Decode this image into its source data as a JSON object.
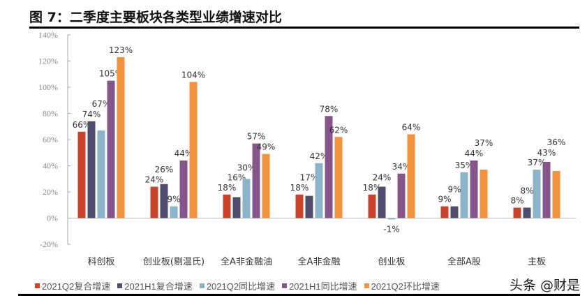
{
  "title": "图 7：二季度主要板块各类型业绩增速对比",
  "watermark": "头条 @财是",
  "chart_data": {
    "type": "bar",
    "title": "图 7：二季度主要板块各类型业绩增速对比",
    "categories": [
      "科创板",
      "创业板(剔温氏)",
      "全A非金融油",
      "全A非金融",
      "创业板",
      "全部A股",
      "主板"
    ],
    "ylim": [
      -20,
      140
    ],
    "yticks": [
      "-20%",
      "0%",
      "20%",
      "40%",
      "60%",
      "80%",
      "100%",
      "120%",
      "140%"
    ],
    "ytick_values": [
      -20,
      0,
      20,
      40,
      60,
      80,
      100,
      120,
      140
    ],
    "grid": false,
    "legend_position": "bottom",
    "series": [
      {
        "name": "2021Q2复合增速",
        "color": "#c9432a",
        "values": [
          66,
          24,
          18,
          18,
          18,
          9,
          8
        ]
      },
      {
        "name": "2021H1复合增速",
        "color": "#4f4c6e",
        "values": [
          74,
          26,
          16,
          17,
          24,
          9,
          8
        ]
      },
      {
        "name": "2021Q2同比增速",
        "color": "#89b4c9",
        "values": [
          67,
          9,
          30,
          42,
          -1,
          35,
          37
        ]
      },
      {
        "name": "2021H1同比增速",
        "color": "#86558a",
        "values": [
          105,
          44,
          57,
          78,
          34,
          44,
          43
        ]
      },
      {
        "name": "2021Q2环比增速",
        "color": "#f0923e",
        "values": [
          123,
          104,
          49,
          62,
          64,
          37,
          36
        ]
      }
    ]
  }
}
